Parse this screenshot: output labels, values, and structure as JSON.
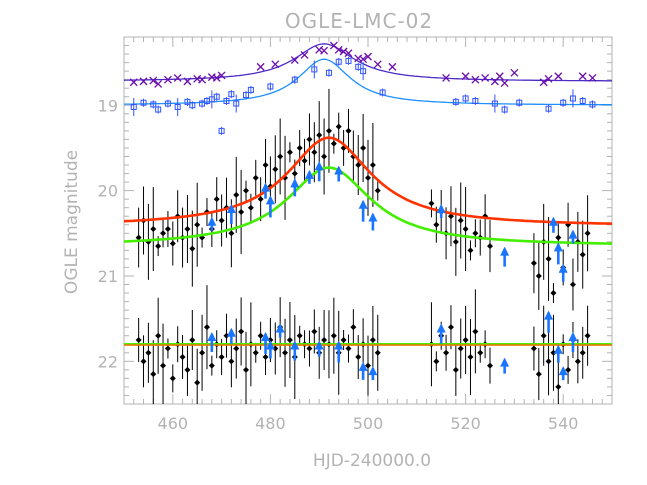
{
  "chart_data": {
    "type": "scatter",
    "title": "OGLE-LMC-02",
    "xlabel": "HJD-240000.0",
    "ylabel": "OGLE magnitude",
    "xlim": [
      450,
      550
    ],
    "ylim": [
      22.5,
      18.2
    ],
    "y_inverted": true,
    "grid": false,
    "x_ticks": [
      460,
      480,
      500,
      520,
      540
    ],
    "y_ticks": [
      19,
      20,
      21,
      22
    ],
    "colors": {
      "axes": "#b3b3b3",
      "points": "#000000",
      "arrows": "#1a75ff",
      "fit_main_red": "#ff3300",
      "fit_main_green": "#44ee00",
      "flat_green": "#44ee00",
      "flat_orange": "#ff6600",
      "top_x": "#6a0dad",
      "top_sq": "#3355ff",
      "top_curve_x": "#4b2cc4",
      "top_curve_sq": "#1e90ff"
    },
    "series": [
      {
        "marker": "x",
        "points": [
          [
            452,
            18.73
          ],
          [
            454,
            18.72
          ],
          [
            456,
            18.71
          ],
          [
            457,
            18.75
          ],
          [
            459,
            18.7
          ],
          [
            461,
            18.68
          ],
          [
            463,
            18.72
          ],
          [
            465,
            18.69
          ],
          [
            466,
            18.7
          ],
          [
            468,
            18.67
          ],
          [
            469,
            18.68
          ],
          [
            470,
            18.65
          ],
          [
            478,
            18.55
          ],
          [
            481,
            18.52
          ],
          [
            485,
            18.47
          ],
          [
            487,
            18.41
          ],
          [
            490,
            18.35
          ],
          [
            491,
            18.36
          ],
          [
            493,
            18.3
          ],
          [
            494,
            18.35
          ],
          [
            495,
            18.37
          ],
          [
            496,
            18.39
          ],
          [
            498,
            18.45
          ],
          [
            499,
            18.46
          ],
          [
            500,
            18.43
          ],
          [
            502,
            18.52
          ],
          [
            505,
            18.55
          ],
          [
            516,
            18.68
          ],
          [
            520,
            18.66
          ],
          [
            522,
            18.7
          ],
          [
            524,
            18.68
          ],
          [
            526,
            18.72
          ],
          [
            527,
            18.66
          ],
          [
            528,
            18.74
          ],
          [
            530,
            18.62
          ],
          [
            536,
            18.73
          ],
          [
            537,
            18.69
          ],
          [
            539,
            18.66
          ],
          [
            544,
            18.66
          ],
          [
            546,
            18.68
          ]
        ]
      },
      {
        "marker": "square",
        "points": [
          [
            452,
            19.02
          ],
          [
            454,
            18.97
          ],
          [
            456,
            18.99
          ],
          [
            457,
            19.05
          ],
          [
            459,
            18.98
          ],
          [
            461,
            19.02
          ],
          [
            463,
            18.96
          ],
          [
            464,
            19.0
          ],
          [
            466,
            18.98
          ],
          [
            467,
            18.95
          ],
          [
            468,
            18.93
          ],
          [
            469,
            18.9
          ],
          [
            470,
            19.3
          ],
          [
            471,
            18.95
          ],
          [
            472,
            18.87
          ],
          [
            473,
            18.98
          ],
          [
            475,
            18.88
          ],
          [
            476,
            18.82
          ],
          [
            480,
            18.78
          ],
          [
            485,
            18.7
          ],
          [
            489,
            18.58
          ],
          [
            492,
            18.62
          ],
          [
            494,
            18.49
          ],
          [
            496,
            18.48
          ],
          [
            498,
            18.55
          ],
          [
            499,
            18.6
          ],
          [
            503,
            18.85
          ],
          [
            518,
            18.96
          ],
          [
            520,
            18.92
          ],
          [
            522,
            18.95
          ],
          [
            526,
            18.98
          ],
          [
            528,
            19.05
          ],
          [
            531,
            18.97
          ],
          [
            537,
            19.04
          ],
          [
            540,
            18.97
          ],
          [
            542,
            18.92
          ],
          [
            544,
            18.95
          ],
          [
            546,
            18.99
          ]
        ]
      },
      {
        "marker": "point",
        "points": [
          [
            453,
            20.55
          ],
          [
            454,
            20.35
          ],
          [
            455,
            20.6
          ],
          [
            456,
            20.45
          ],
          [
            457,
            20.65
          ],
          [
            458,
            20.5
          ],
          [
            459,
            20.45
          ],
          [
            460,
            20.62
          ],
          [
            461,
            20.3
          ],
          [
            462,
            20.55
          ],
          [
            463,
            20.45
          ],
          [
            464,
            20.68
          ],
          [
            465,
            20.4
          ],
          [
            466,
            20.55
          ],
          [
            467,
            20.25
          ],
          [
            468,
            20.45
          ],
          [
            469,
            20.1
          ],
          [
            470,
            20.35
          ],
          [
            471,
            20.2
          ],
          [
            472,
            20.5
          ],
          [
            473,
            20.05
          ],
          [
            474,
            20.25
          ],
          [
            475,
            20.0
          ],
          [
            476,
            20.2
          ],
          [
            477,
            19.85
          ],
          [
            478,
            20.1
          ],
          [
            479,
            19.7
          ],
          [
            480,
            19.95
          ],
          [
            481,
            19.75
          ],
          [
            482,
            19.6
          ],
          [
            483,
            19.85
          ],
          [
            484,
            19.55
          ],
          [
            485,
            19.8
          ],
          [
            486,
            19.5
          ],
          [
            487,
            19.65
          ],
          [
            488,
            19.4
          ],
          [
            489,
            19.55
          ],
          [
            490,
            19.35
          ],
          [
            491,
            19.6
          ],
          [
            492,
            19.3
          ],
          [
            493,
            19.45
          ],
          [
            494,
            19.25
          ],
          [
            495,
            19.5
          ],
          [
            496,
            19.3
          ],
          [
            497,
            19.6
          ],
          [
            498,
            19.7
          ],
          [
            499,
            19.5
          ],
          [
            500,
            19.85
          ],
          [
            501,
            19.7
          ],
          [
            502,
            20.0
          ],
          [
            513,
            20.15
          ],
          [
            514,
            20.4
          ],
          [
            515,
            20.25
          ],
          [
            516,
            20.5
          ],
          [
            517,
            20.3
          ],
          [
            518,
            20.6
          ],
          [
            519,
            20.35
          ],
          [
            520,
            20.45
          ],
          [
            521,
            20.7
          ],
          [
            522,
            20.5
          ],
          [
            523,
            20.55
          ],
          [
            524,
            20.3
          ],
          [
            525,
            20.65
          ],
          [
            534,
            20.85
          ],
          [
            535,
            21.0
          ],
          [
            536,
            20.6
          ],
          [
            537,
            20.8
          ],
          [
            538,
            21.2
          ],
          [
            539,
            20.55
          ],
          [
            540,
            20.9
          ],
          [
            541,
            20.4
          ],
          [
            542,
            21.1
          ],
          [
            543,
            20.6
          ],
          [
            544,
            20.75
          ],
          [
            545,
            20.5
          ]
        ]
      },
      {
        "marker": "point",
        "points": [
          [
            453,
            21.75
          ],
          [
            454,
            22.0
          ],
          [
            455,
            21.9
          ],
          [
            456,
            22.15
          ],
          [
            457,
            21.7
          ],
          [
            458,
            22.05
          ],
          [
            459,
            21.85
          ],
          [
            460,
            22.2
          ],
          [
            461,
            21.8
          ],
          [
            462,
            21.95
          ],
          [
            463,
            22.1
          ],
          [
            464,
            21.75
          ],
          [
            465,
            22.25
          ],
          [
            466,
            21.9
          ],
          [
            467,
            21.6
          ],
          [
            468,
            22.05
          ],
          [
            469,
            21.8
          ],
          [
            470,
            21.95
          ],
          [
            471,
            21.7
          ],
          [
            472,
            22.0
          ],
          [
            473,
            21.85
          ],
          [
            474,
            21.65
          ],
          [
            475,
            22.1
          ],
          [
            476,
            21.8
          ],
          [
            477,
            21.9
          ],
          [
            478,
            21.7
          ],
          [
            479,
            21.95
          ],
          [
            480,
            21.75
          ],
          [
            481,
            21.85
          ],
          [
            482,
            21.6
          ],
          [
            483,
            21.9
          ],
          [
            484,
            21.75
          ],
          [
            485,
            21.95
          ],
          [
            486,
            21.7
          ],
          [
            487,
            21.8
          ],
          [
            488,
            21.85
          ],
          [
            489,
            21.65
          ],
          [
            490,
            21.9
          ],
          [
            491,
            21.75
          ],
          [
            492,
            21.8
          ],
          [
            493,
            21.7
          ],
          [
            494,
            21.9
          ],
          [
            495,
            21.75
          ],
          [
            496,
            21.85
          ],
          [
            497,
            21.6
          ],
          [
            498,
            21.95
          ],
          [
            499,
            21.8
          ],
          [
            500,
            22.05
          ],
          [
            501,
            21.75
          ],
          [
            502,
            21.9
          ],
          [
            513,
            21.8
          ],
          [
            514,
            22.0
          ],
          [
            515,
            21.7
          ],
          [
            516,
            21.9
          ],
          [
            517,
            21.6
          ],
          [
            518,
            22.1
          ],
          [
            519,
            21.85
          ],
          [
            520,
            21.75
          ],
          [
            521,
            21.95
          ],
          [
            522,
            21.65
          ],
          [
            523,
            21.9
          ],
          [
            524,
            21.8
          ],
          [
            525,
            22.05
          ],
          [
            534,
            21.85
          ],
          [
            535,
            22.15
          ],
          [
            536,
            21.7
          ],
          [
            537,
            22.0
          ],
          [
            538,
            21.9
          ],
          [
            539,
            22.3
          ],
          [
            540,
            21.8
          ],
          [
            541,
            22.1
          ],
          [
            542,
            21.75
          ],
          [
            543,
            22.0
          ],
          [
            544,
            21.9
          ],
          [
            545,
            21.7
          ]
        ]
      },
      {
        "marker": "arrow",
        "points": [
          [
            468,
            20.4
          ],
          [
            472,
            20.25
          ],
          [
            479,
            20.0
          ],
          [
            480,
            20.15
          ],
          [
            485,
            19.95
          ],
          [
            488,
            19.85
          ],
          [
            490,
            19.75
          ],
          [
            494,
            19.8
          ],
          [
            499,
            20.2
          ],
          [
            501,
            20.35
          ],
          [
            515,
            20.25
          ],
          [
            528,
            20.75
          ],
          [
            538,
            20.4
          ],
          [
            539,
            20.7
          ],
          [
            540,
            20.95
          ],
          [
            542,
            20.55
          ],
          [
            468,
            21.75
          ],
          [
            472,
            21.7
          ],
          [
            479,
            21.75
          ],
          [
            480,
            21.85
          ],
          [
            482,
            21.65
          ],
          [
            485,
            21.85
          ],
          [
            490,
            21.85
          ],
          [
            494,
            21.85
          ],
          [
            499,
            22.1
          ],
          [
            501,
            22.15
          ],
          [
            515,
            21.65
          ],
          [
            528,
            22.05
          ],
          [
            537,
            21.5
          ],
          [
            539,
            21.9
          ],
          [
            540,
            22.15
          ],
          [
            542,
            21.75
          ]
        ]
      },
      {
        "marker": "line",
        "curve": "lorentzian",
        "t0": 491,
        "fwhm": 15,
        "baseline": 18.72,
        "peak": 18.28
      },
      {
        "marker": "line",
        "curve": "lorentzian",
        "t0": 491,
        "fwhm": 13,
        "baseline": 19.0,
        "peak": 18.46
      },
      {
        "marker": "line",
        "curve": "lorentzian",
        "t0": 492,
        "fwhm": 21,
        "baseline": 20.42,
        "peak": 19.38
      },
      {
        "marker": "line",
        "curve": "lorentzian",
        "t0": 492,
        "fwhm": 21,
        "baseline": 20.65,
        "peak": 19.73
      },
      {
        "marker": "line",
        "curve": "flat",
        "baseline": 21.8
      },
      {
        "marker": "line",
        "curve": "flat",
        "baseline": 21.81
      }
    ]
  }
}
